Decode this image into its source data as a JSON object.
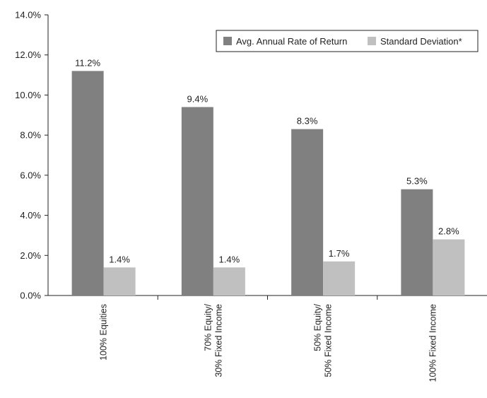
{
  "chart_data": {
    "type": "bar",
    "categories": [
      [
        "100% Equities"
      ],
      [
        "70% Equity/",
        "30% Fixed Income"
      ],
      [
        "50% Equity/",
        "50% Fixed Income"
      ],
      [
        "100% Fixed Income"
      ]
    ],
    "series": [
      {
        "name": "Avg. Annual Rate of Return",
        "values": [
          11.2,
          9.4,
          8.3,
          5.3
        ],
        "labels": [
          "11.2%",
          "9.4%",
          "8.3%",
          "5.3%"
        ],
        "color": "#808080"
      },
      {
        "name": "Standard Deviation*",
        "values": [
          1.4,
          1.4,
          1.7,
          2.8
        ],
        "labels": [
          "1.4%",
          "1.4%",
          "1.7%",
          "2.8%"
        ],
        "color": "#c0c0c0"
      }
    ],
    "ylim": [
      0,
      14
    ],
    "yticks": [
      "0.0%",
      "2.0%",
      "4.0%",
      "6.0%",
      "8.0%",
      "10.0%",
      "12.0%",
      "14.0%"
    ],
    "grid": false,
    "legend_position": "top-right"
  }
}
